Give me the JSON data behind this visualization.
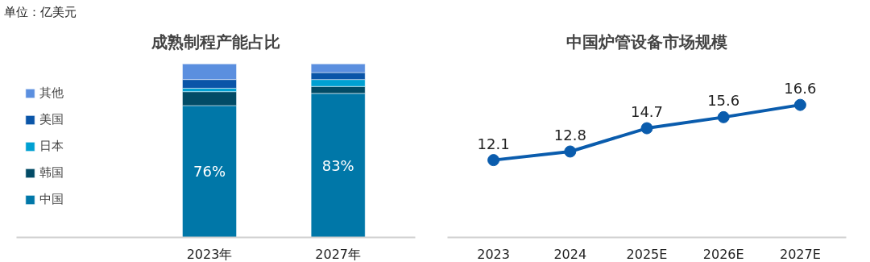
{
  "chart_data": [
    {
      "type": "bar",
      "title": "成熟制程产能占比",
      "annotations": [
        "单位：亿美元"
      ],
      "categories": [
        "2023年",
        "2027年"
      ],
      "stacked": true,
      "legend": "left",
      "grid": false,
      "series": [
        {
          "name": "中国",
          "color": "#0077a8",
          "values": [
            76,
            83
          ],
          "value_labels": [
            "76%",
            "83%"
          ]
        },
        {
          "name": "韩国",
          "color": "#024b66",
          "values": [
            8,
            4
          ]
        },
        {
          "name": "日本",
          "color": "#00a0d2",
          "values": [
            2,
            4
          ]
        },
        {
          "name": "美国",
          "color": "#0a55a8",
          "values": [
            5,
            4
          ]
        },
        {
          "name": "其他",
          "color": "#5b8fdf",
          "values": [
            9,
            5
          ]
        }
      ]
    },
    {
      "type": "line",
      "title": "中国炉管设备市场规模",
      "categories": [
        "2023",
        "2024",
        "2025E",
        "2026E",
        "2027E"
      ],
      "data_labels": true,
      "marker": "circle",
      "grid": false,
      "legend": false,
      "series": [
        {
          "color": "#0a5cad",
          "values": [
            12.1,
            12.8,
            14.7,
            15.6,
            16.6
          ]
        }
      ]
    }
  ]
}
